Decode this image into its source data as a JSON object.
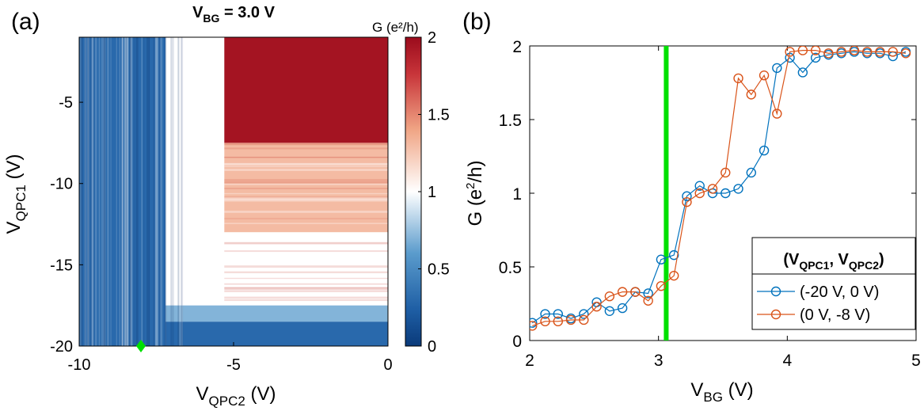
{
  "colors": {
    "accent_line": "#00e000",
    "marker": "#00e000",
    "series_blue": "#0072bd",
    "series_orange": "#d95319",
    "cmap_low": "#0a3a7a",
    "cmap_mid": "#ffffff",
    "cmap_high": "#9b0b1c"
  },
  "chart_data": [
    {
      "panel_label": "(a)",
      "type": "heatmap",
      "title_main": "V",
      "title_sub": "BG",
      "title_rest": " = 3.0 V",
      "xlabel_main": "V",
      "xlabel_sub": "QPC2",
      "xlabel_rest": " (V)",
      "ylabel_main": "V",
      "ylabel_sub": "QPC1",
      "ylabel_rest": " (V)",
      "xlim": [
        -10,
        0
      ],
      "ylim": [
        -20,
        -1
      ],
      "xticks": [
        -10,
        -5,
        0
      ],
      "yticks": [
        -20,
        -15,
        -10,
        -5
      ],
      "xtick_labels": [
        "-10",
        "-5",
        "0"
      ],
      "ytick_labels": [
        "-20",
        "-15",
        "-10",
        "-5"
      ],
      "marker_point": {
        "x": -8,
        "y": -20
      },
      "colorbar": {
        "label": "G (e²/h)",
        "range": [
          0,
          2
        ],
        "ticks": [
          0,
          0.5,
          1,
          1.5,
          2
        ],
        "tick_labels": [
          "0",
          "0.5",
          "1",
          "1.5",
          "2"
        ]
      },
      "regions": [
        {
          "x": [
            -10,
            -7.2
          ],
          "y": [
            -20,
            -1
          ],
          "G": 0.3
        },
        {
          "x": [
            -7.2,
            -5.3
          ],
          "y": [
            -17.5,
            -1
          ],
          "G": 1.0
        },
        {
          "x": [
            -5.3,
            0
          ],
          "y": [
            -7.5,
            -1
          ],
          "G": 1.95
        },
        {
          "x": [
            -5.3,
            0
          ],
          "y": [
            -13,
            -7.5
          ],
          "G": 1.3
        },
        {
          "x": [
            -5.3,
            0
          ],
          "y": [
            -17.5,
            -13
          ],
          "G": 1.0
        },
        {
          "x": [
            -7.2,
            0
          ],
          "y": [
            -18.5,
            -17.5
          ],
          "G": 0.7
        },
        {
          "x": [
            -7.2,
            0
          ],
          "y": [
            -20,
            -18.5
          ],
          "G": 0.3
        }
      ]
    },
    {
      "panel_label": "(b)",
      "type": "line",
      "xlabel_main": "V",
      "xlabel_sub": "BG",
      "xlabel_rest": " (V)",
      "ylabel_main": "G (e",
      "ylabel_sup": "2",
      "ylabel_rest": "/h)",
      "xlim": [
        2,
        5
      ],
      "ylim": [
        0,
        2
      ],
      "xticks": [
        2,
        3,
        4,
        5
      ],
      "yticks": [
        0,
        0.5,
        1,
        1.5,
        2
      ],
      "xtick_labels": [
        "2",
        "3",
        "4",
        "5"
      ],
      "ytick_labels": [
        "0",
        "0.5",
        "1",
        "1.5",
        "2"
      ],
      "vline_x": 3.06,
      "legend": {
        "title_pre": "(V",
        "title_sub1": "QPC1",
        "title_mid": ", V",
        "title_sub2": "QPC2",
        "title_post": ")",
        "position": "bottom-right"
      },
      "x": [
        2.02,
        2.12,
        2.22,
        2.32,
        2.42,
        2.52,
        2.62,
        2.72,
        2.82,
        2.92,
        3.02,
        3.12,
        3.22,
        3.32,
        3.42,
        3.52,
        3.62,
        3.72,
        3.82,
        3.92,
        4.02,
        4.12,
        4.22,
        4.32,
        4.42,
        4.52,
        4.62,
        4.72,
        4.82,
        4.92
      ],
      "series": [
        {
          "name": "(-20 V, 0 V)",
          "values": [
            0.12,
            0.18,
            0.18,
            0.15,
            0.18,
            0.26,
            0.2,
            0.22,
            0.33,
            0.32,
            0.55,
            0.58,
            0.98,
            1.05,
            1.0,
            1.0,
            1.03,
            1.14,
            1.29,
            1.85,
            1.92,
            1.82,
            1.92,
            1.94,
            1.95,
            1.96,
            1.95,
            1.95,
            1.93,
            1.96
          ]
        },
        {
          "name": "(0 V, -8 V)",
          "values": [
            0.1,
            0.13,
            0.13,
            0.14,
            0.14,
            0.23,
            0.3,
            0.33,
            0.33,
            0.27,
            0.37,
            0.44,
            0.94,
            1.0,
            1.03,
            1.14,
            1.78,
            1.67,
            1.8,
            1.54,
            1.96,
            1.97,
            1.97,
            1.95,
            1.96,
            1.97,
            1.96,
            1.96,
            1.96,
            1.95
          ]
        }
      ]
    }
  ]
}
